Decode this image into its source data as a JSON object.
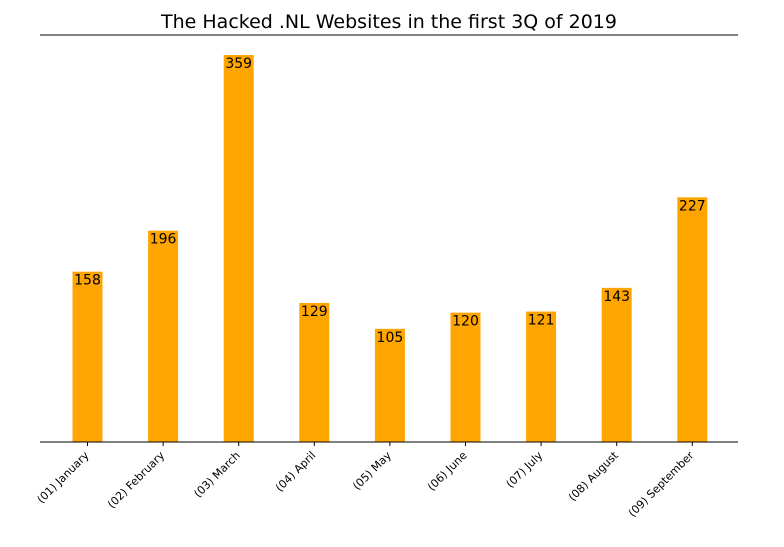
{
  "chart_data": {
    "type": "bar",
    "title": "The Hacked .NL Websites in the first 3Q of 2019",
    "xlabel": "",
    "ylabel": "",
    "categories": [
      "(01) January",
      "(02) February",
      "(03) March",
      "(04) April",
      "(05) May",
      "(06) June",
      "(07) July",
      "(08) August",
      "(09) September"
    ],
    "values": [
      158,
      196,
      359,
      129,
      105,
      120,
      121,
      143,
      227
    ],
    "ylim": [
      0,
      359
    ],
    "bar_color": "#ffa500",
    "grid": false,
    "legend": "none",
    "y_axis_visible": false
  }
}
